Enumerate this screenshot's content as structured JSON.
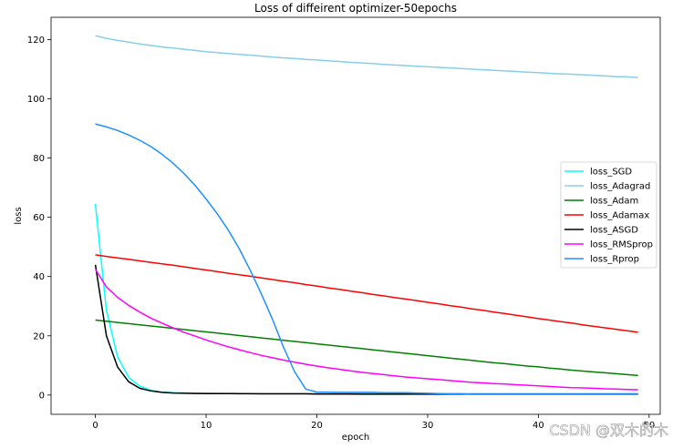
{
  "chart_data": {
    "type": "line",
    "title": "Loss of diffeirent optimizer-50epochs",
    "xlabel": "epoch",
    "ylabel": "loss",
    "xlim": [
      -4,
      51
    ],
    "ylim": [
      -6.5,
      127.5
    ],
    "xticks": [
      0,
      10,
      20,
      30,
      40,
      50
    ],
    "yticks": [
      0,
      20,
      40,
      60,
      80,
      100,
      120
    ],
    "grid": false,
    "legend_position": "center-right",
    "x": [
      0,
      1,
      2,
      3,
      4,
      5,
      6,
      7,
      8,
      9,
      10,
      11,
      12,
      13,
      14,
      15,
      16,
      17,
      18,
      19,
      20,
      21,
      22,
      23,
      24,
      25,
      26,
      27,
      28,
      29,
      30,
      31,
      32,
      33,
      34,
      35,
      36,
      37,
      38,
      39,
      40,
      41,
      42,
      43,
      44,
      45,
      46,
      47,
      48,
      49
    ],
    "series": [
      {
        "name": "loss_SGD",
        "color": "#00ffff",
        "values": [
          64.5,
          28.5,
          13.0,
          6.0,
          3.0,
          1.6,
          1.0,
          0.8,
          0.7,
          0.65,
          0.6,
          0.58,
          0.55,
          0.53,
          0.52,
          0.5,
          0.5,
          0.5,
          0.5,
          0.5,
          0.5,
          0.5,
          0.5,
          0.5,
          0.5,
          0.5,
          0.5,
          0.5,
          0.5,
          0.5,
          0.5,
          0.5,
          0.5,
          0.5,
          0.5,
          0.5,
          0.5,
          0.5,
          0.5,
          0.5,
          0.5,
          0.5,
          0.5,
          0.5,
          0.5,
          0.5,
          0.5,
          0.5,
          0.5,
          0.5
        ]
      },
      {
        "name": "loss_Adagrad",
        "color": "#87ceeb",
        "values": [
          121.3,
          120.4,
          119.7,
          119.1,
          118.5,
          118.0,
          117.5,
          117.1,
          116.7,
          116.3,
          115.9,
          115.6,
          115.3,
          115.0,
          114.7,
          114.4,
          114.1,
          113.8,
          113.6,
          113.3,
          113.1,
          112.8,
          112.6,
          112.3,
          112.1,
          111.9,
          111.6,
          111.4,
          111.2,
          111.0,
          110.8,
          110.6,
          110.4,
          110.2,
          110.0,
          109.8,
          109.6,
          109.4,
          109.2,
          109.0,
          108.8,
          108.6,
          108.4,
          108.3,
          108.1,
          107.9,
          107.7,
          107.5,
          107.4,
          107.2
        ]
      },
      {
        "name": "loss_Adam",
        "color": "#008000",
        "values": [
          25.3,
          24.9,
          24.5,
          24.1,
          23.7,
          23.3,
          22.9,
          22.5,
          22.1,
          21.7,
          21.3,
          20.9,
          20.5,
          20.1,
          19.7,
          19.3,
          18.9,
          18.5,
          18.1,
          17.7,
          17.3,
          16.9,
          16.5,
          16.1,
          15.7,
          15.3,
          14.9,
          14.5,
          14.1,
          13.7,
          13.3,
          12.9,
          12.5,
          12.1,
          11.7,
          11.3,
          10.9,
          10.6,
          10.2,
          9.8,
          9.5,
          9.1,
          8.8,
          8.4,
          8.1,
          7.8,
          7.5,
          7.2,
          6.9,
          6.6
        ]
      },
      {
        "name": "loss_Adamax",
        "color": "#ff0000",
        "values": [
          47.3,
          46.8,
          46.3,
          45.8,
          45.3,
          44.8,
          44.3,
          43.8,
          43.3,
          42.7,
          42.2,
          41.7,
          41.1,
          40.6,
          40.1,
          39.5,
          39.0,
          38.4,
          37.9,
          37.3,
          36.8,
          36.2,
          35.7,
          35.1,
          34.6,
          34.0,
          33.5,
          32.9,
          32.4,
          31.9,
          31.3,
          30.8,
          30.2,
          29.7,
          29.1,
          28.6,
          28.0,
          27.5,
          26.9,
          26.4,
          25.8,
          25.3,
          24.8,
          24.3,
          23.7,
          23.2,
          22.7,
          22.2,
          21.7,
          21.2
        ]
      },
      {
        "name": "loss_ASGD",
        "color": "#000000",
        "values": [
          44.0,
          20.0,
          9.5,
          4.5,
          2.3,
          1.4,
          0.9,
          0.7,
          0.6,
          0.55,
          0.5,
          0.5,
          0.5,
          0.45,
          0.45,
          0.4,
          0.4,
          0.4,
          0.4,
          0.4,
          0.35,
          0.35,
          0.35,
          0.35,
          0.3,
          0.3,
          0.3,
          0.3,
          0.3,
          0.3,
          0.3,
          0.3,
          0.3,
          0.3,
          0.3,
          0.3,
          0.3,
          0.3,
          0.3,
          0.3,
          0.3,
          0.3,
          0.3,
          0.3,
          0.3,
          0.3,
          0.3,
          0.3,
          0.3,
          0.3
        ]
      },
      {
        "name": "loss_RMSprop",
        "color": "#ff00ff",
        "values": [
          42.5,
          36.5,
          33.0,
          30.3,
          28.0,
          26.0,
          24.3,
          22.7,
          21.2,
          19.9,
          18.6,
          17.4,
          16.3,
          15.3,
          14.3,
          13.4,
          12.6,
          11.8,
          11.1,
          10.4,
          9.8,
          9.2,
          8.7,
          8.2,
          7.7,
          7.3,
          6.9,
          6.5,
          6.1,
          5.8,
          5.5,
          5.2,
          4.9,
          4.6,
          4.3,
          4.1,
          3.9,
          3.7,
          3.5,
          3.3,
          3.1,
          2.9,
          2.7,
          2.5,
          2.4,
          2.3,
          2.1,
          2.0,
          1.9,
          1.8
        ]
      },
      {
        "name": "loss_Rprop",
        "color": "#1e90ff",
        "values": [
          91.5,
          90.5,
          89.3,
          87.8,
          86.0,
          83.9,
          81.3,
          78.3,
          74.8,
          70.8,
          66.2,
          61.2,
          55.7,
          49.3,
          42.0,
          34.0,
          25.5,
          16.0,
          7.8,
          2.0,
          1.0,
          1.0,
          0.9,
          0.9,
          0.9,
          0.9,
          0.8,
          0.8,
          0.8,
          0.7,
          0.6,
          0.5,
          0.4,
          0.4,
          0.3,
          0.3,
          0.3,
          0.3,
          0.3,
          0.3,
          0.3,
          0.3,
          0.3,
          0.3,
          0.3,
          0.3,
          0.3,
          0.3,
          0.3,
          0.3
        ]
      }
    ]
  },
  "watermark": "CSDN @双木的木"
}
